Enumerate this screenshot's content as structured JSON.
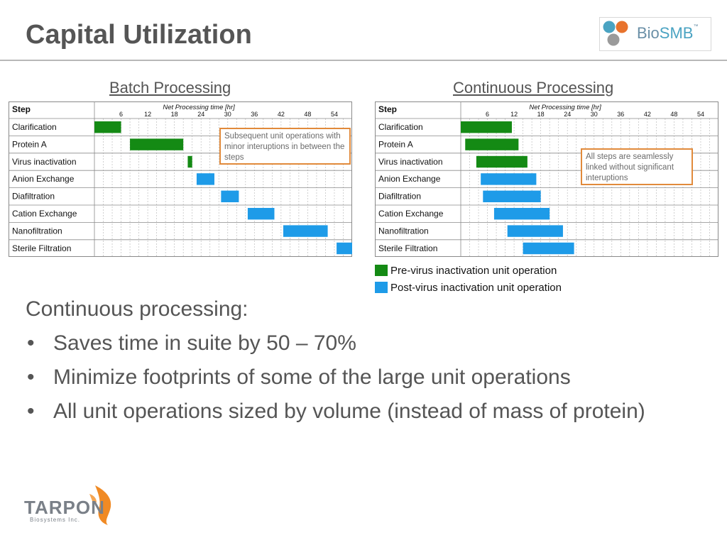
{
  "slide": {
    "title": "Capital Utilization",
    "logo": {
      "text_regular": "Bio",
      "text_bold": "SMB",
      "text_mark": "™",
      "colors": [
        "#4aa3c2",
        "#e8732d",
        "#9a9a9a"
      ]
    }
  },
  "colors": {
    "pre_virus": "#148a14",
    "post_virus": "#1e9be8",
    "callout_border": "#e18a3b"
  },
  "chart_data": [
    {
      "type": "bar",
      "subtype": "gantt",
      "title": "Batch Processing",
      "table_header": "Step",
      "xlabel": "Net Processing time [hr]",
      "xticks": [
        6,
        12,
        18,
        24,
        30,
        36,
        42,
        48,
        54
      ],
      "xlim": [
        0,
        58
      ],
      "grid": true,
      "tasks": [
        {
          "name": "Clarification",
          "start": 0,
          "end": 6,
          "group": "pre"
        },
        {
          "name": "Protein A",
          "start": 8,
          "end": 20,
          "group": "pre"
        },
        {
          "name": "Virus inactivation",
          "start": 21,
          "end": 22,
          "group": "pre"
        },
        {
          "name": "Anion Exchange",
          "start": 23,
          "end": 27,
          "group": "post"
        },
        {
          "name": "Diafiltration",
          "start": 28.5,
          "end": 32.5,
          "group": "post"
        },
        {
          "name": "Cation Exchange",
          "start": 34.5,
          "end": 40.5,
          "group": "post"
        },
        {
          "name": "Nanofiltration",
          "start": 42.5,
          "end": 52.5,
          "group": "post"
        },
        {
          "name": "Sterile Filtration",
          "start": 54.5,
          "end": 58,
          "group": "post"
        }
      ],
      "annotation": "Subsequent unit operations with minor interuptions in between the steps"
    },
    {
      "type": "bar",
      "subtype": "gantt",
      "title": "Continuous Processing",
      "table_header": "Step",
      "xlabel": "Net Processing time [hr]",
      "xticks": [
        6,
        12,
        18,
        24,
        30,
        36,
        42,
        48,
        54
      ],
      "xlim": [
        0,
        58
      ],
      "grid": true,
      "tasks": [
        {
          "name": "Clarification",
          "start": 0,
          "end": 11.5,
          "group": "pre"
        },
        {
          "name": "Protein A",
          "start": 1,
          "end": 13,
          "group": "pre"
        },
        {
          "name": "Virus inactivation",
          "start": 3.5,
          "end": 15,
          "group": "pre"
        },
        {
          "name": "Anion Exchange",
          "start": 4.5,
          "end": 17,
          "group": "post"
        },
        {
          "name": "Diafiltration",
          "start": 5,
          "end": 18,
          "group": "post"
        },
        {
          "name": "Cation Exchange",
          "start": 7.5,
          "end": 20,
          "group": "post"
        },
        {
          "name": "Nanofiltration",
          "start": 10.5,
          "end": 23,
          "group": "post"
        },
        {
          "name": "Sterile Filtration",
          "start": 14,
          "end": 25.5,
          "group": "post"
        }
      ],
      "annotation": "All steps are seamlessly linked without significant interuptions",
      "legend": [
        {
          "label": "Pre-virus inactivation unit operation",
          "color": "#148a14"
        },
        {
          "label": "Post-virus inactivation unit operation",
          "color": "#1e9be8"
        }
      ]
    }
  ],
  "body": {
    "lead": "Continuous processing:",
    "bullets": [
      "Saves time in suite by 50 – 70%",
      "Minimize footprints of some of the large unit operations",
      "All unit operations sized by volume (instead of mass of protein)"
    ],
    "bullet_glyph": "•"
  },
  "footer_logo": {
    "name": "TARPON",
    "tagline": "Biosystems Inc."
  }
}
